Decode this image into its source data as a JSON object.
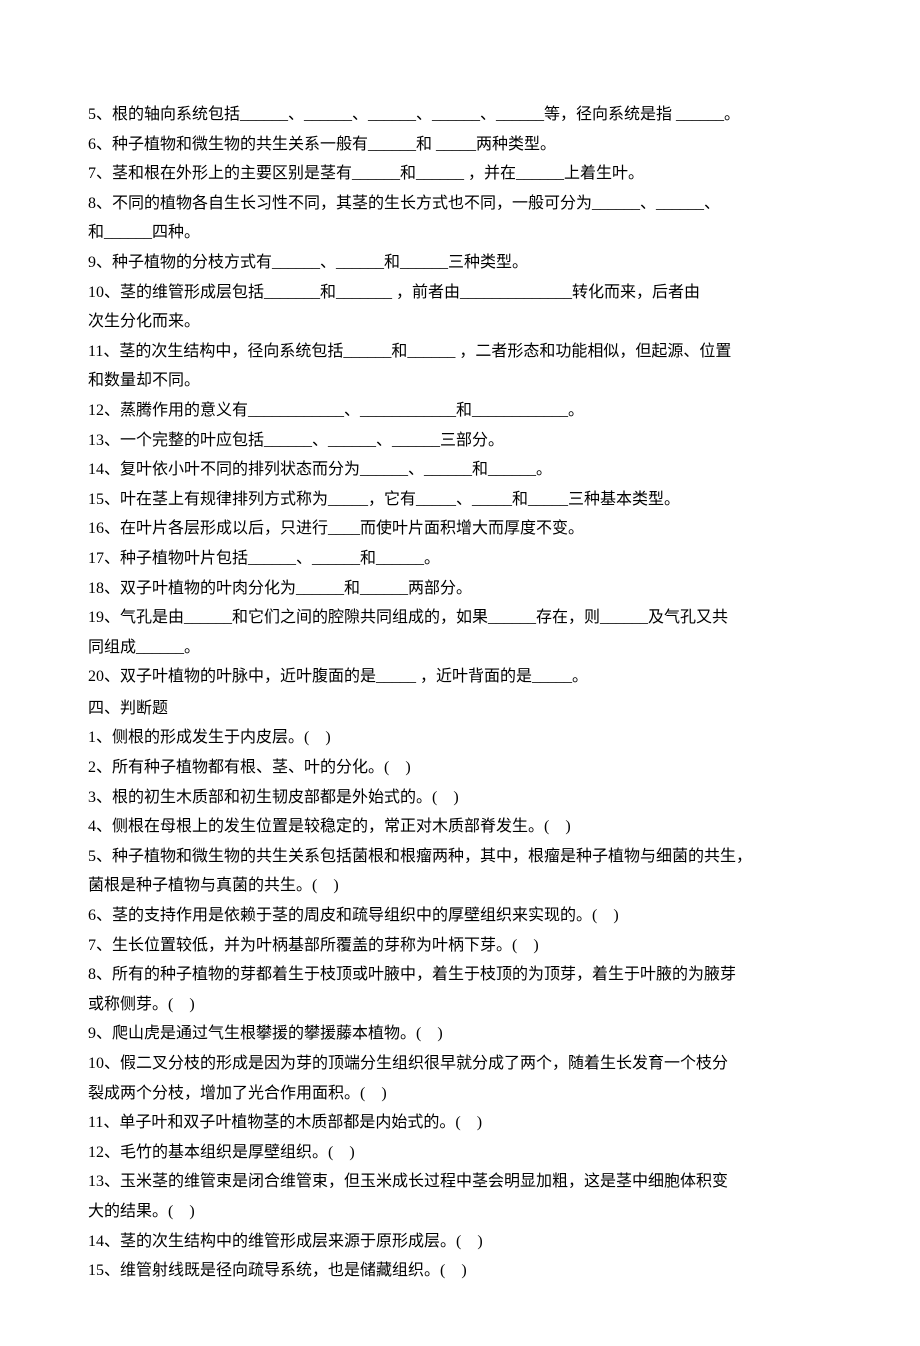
{
  "fill": [
    "5、根的轴向系统包括______、______、______、______、______等，径向系统是指 ______。",
    "6、种子植物和微生物的共生关系一般有______和 _____两种类型。",
    "7、茎和根在外形上的主要区别是茎有______和______ ，并在______上着生叶。",
    "8、不同的植物各自生长习性不同，其茎的生长方式也不同，一般可分为______、______、",
    "和______四种。",
    "9、种子植物的分枝方式有______、______和______三种类型。",
    "10、茎的维管形成层包括_______和_______ ，前者由______________转化而来，后者由",
    "次生分化而来。",
    "11、茎的次生结构中，径向系统包括______和______ ，二者形态和功能相似，但起源、位置",
    "和数量却不同。",
    "12、蒸腾作用的意义有____________、____________和____________。",
    "13、一个完整的叶应包括______、______、______三部分。",
    "14、复叶依小叶不同的排列状态而分为______、______和______。",
    "15、叶在茎上有规律排列方式称为_____，它有_____、_____和_____三种基本类型。",
    "16、在叶片各层形成以后，只进行____而使叶片面积增大而厚度不变。",
    "17、种子植物叶片包括______、______和______。",
    "18、双子叶植物的叶肉分化为______和______两部分。",
    "19、气孔是由______和它们之间的腔隙共同组成的，如果______存在，则______及气孔又共",
    "同组成______。",
    "20、双子叶植物的叶脉中，近叶腹面的是_____ ，近叶背面的是_____。"
  ],
  "section4": "四、判断题",
  "judge": [
    "1、侧根的形成发生于内皮层。(　)",
    "2、所有种子植物都有根、茎、叶的分化。(　)",
    "3、根的初生木质部和初生韧皮部都是外始式的。(　)",
    "4、侧根在母根上的发生位置是较稳定的，常正对木质部脊发生。(　)",
    "5、种子植物和微生物的共生关系包括菌根和根瘤两种，其中，根瘤是种子植物与细菌的共生，",
    "菌根是种子植物与真菌的共生。(　)",
    "6、茎的支持作用是依赖于茎的周皮和疏导组织中的厚壁组织来实现的。(　)",
    "7、生长位置较低，并为叶柄基部所覆盖的芽称为叶柄下芽。(　)",
    "8、所有的种子植物的芽都着生于枝顶或叶腋中，着生于枝顶的为顶芽，着生于叶腋的为腋芽",
    "或称侧芽。(　)",
    "9、爬山虎是通过气生根攀援的攀援藤本植物。(　)",
    "10、假二叉分枝的形成是因为芽的顶端分生组织很早就分成了两个，随着生长发育一个枝分",
    "裂成两个分枝，增加了光合作用面积。(　)",
    "11、单子叶和双子叶植物茎的木质部都是内始式的。(　)",
    "12、毛竹的基本组织是厚壁组织。(　)",
    "13、玉米茎的维管束是闭合维管束，但玉米成长过程中茎会明显加粗，这是茎中细胞体积变",
    "大的结果。(　)",
    "14、茎的次生结构中的维管形成层来源于原形成层。(　)",
    "15、维管射线既是径向疏导系统，也是储藏组织。(　)"
  ]
}
